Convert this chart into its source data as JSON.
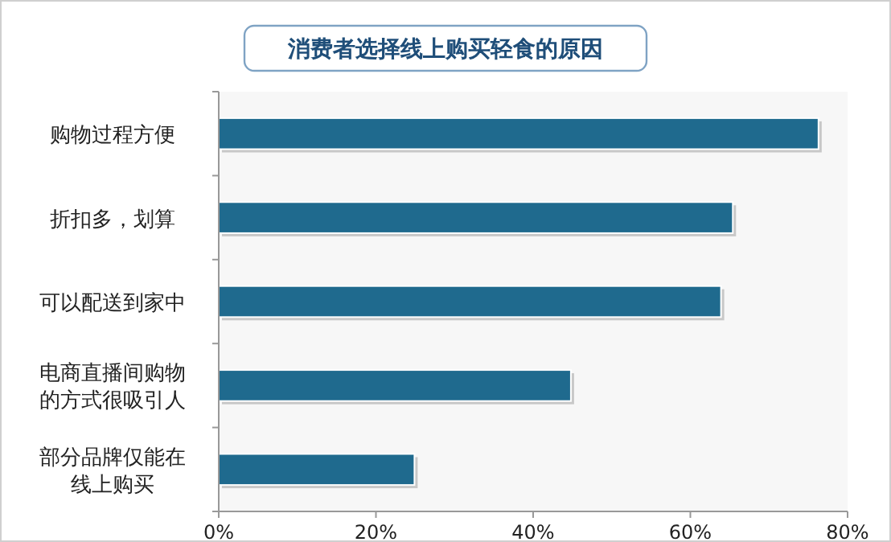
{
  "chart_data": {
    "type": "bar",
    "orientation": "horizontal",
    "title": "消费者选择线上购买轻食的原因",
    "categories": [
      "购物过程方便",
      "折扣多，划算",
      "可以配送到家中",
      "电商直播间购物的方式很吸引人",
      "部分品牌仅能在线上购买"
    ],
    "values": [
      76.3,
      65.4,
      63.9,
      44.8,
      24.9
    ],
    "color": "#1f6a8e",
    "xlim": [
      0,
      80
    ],
    "xticks": [
      {
        "value": 0,
        "label": "0%"
      },
      {
        "value": 20,
        "label": "20%"
      },
      {
        "value": 40,
        "label": "40%"
      },
      {
        "value": 60,
        "label": "60%"
      },
      {
        "value": 80,
        "label": "80%"
      }
    ]
  }
}
